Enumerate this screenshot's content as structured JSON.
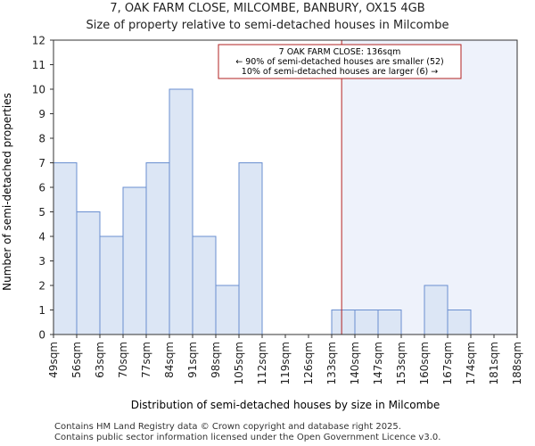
{
  "chart_data": {
    "type": "bar",
    "title": "7, OAK FARM CLOSE, MILCOMBE, BANBURY, OX15 4GB",
    "subtitle": "Size of property relative to semi-detached houses in Milcombe",
    "xlabel": "Distribution of semi-detached houses by size in Milcombe",
    "ylabel": "Number of semi-detached properties",
    "ylim": [
      0,
      12
    ],
    "yticks": [
      0,
      1,
      2,
      3,
      4,
      5,
      6,
      7,
      8,
      9,
      10,
      11,
      12
    ],
    "bin_edges": [
      "49sqm",
      "56sqm",
      "63sqm",
      "70sqm",
      "77sqm",
      "84sqm",
      "91sqm",
      "98sqm",
      "105sqm",
      "112sqm",
      "119sqm",
      "126sqm",
      "133sqm",
      "140sqm",
      "147sqm",
      "153sqm",
      "160sqm",
      "167sqm",
      "174sqm",
      "181sqm",
      "188sqm"
    ],
    "values": [
      7,
      5,
      4,
      6,
      7,
      10,
      4,
      2,
      7,
      0,
      0,
      0,
      1,
      1,
      1,
      0,
      2,
      1,
      0,
      0
    ],
    "marker": {
      "value": 136,
      "color": "#b22222"
    },
    "annotation": {
      "line1": "7 OAK FARM CLOSE: 136sqm",
      "line2": "← 90% of semi-detached houses are smaller (52)",
      "line3": "10% of semi-detached houses are larger (6) →"
    },
    "colors": {
      "bar_fill": "#dce6f5",
      "bar_edge": "#6a8fd0",
      "highlight_bg": "#eef2fb",
      "axis": "#333333"
    }
  },
  "footer": {
    "line1": "Contains HM Land Registry data © Crown copyright and database right 2025.",
    "line2": "Contains public sector information licensed under the Open Government Licence v3.0."
  }
}
